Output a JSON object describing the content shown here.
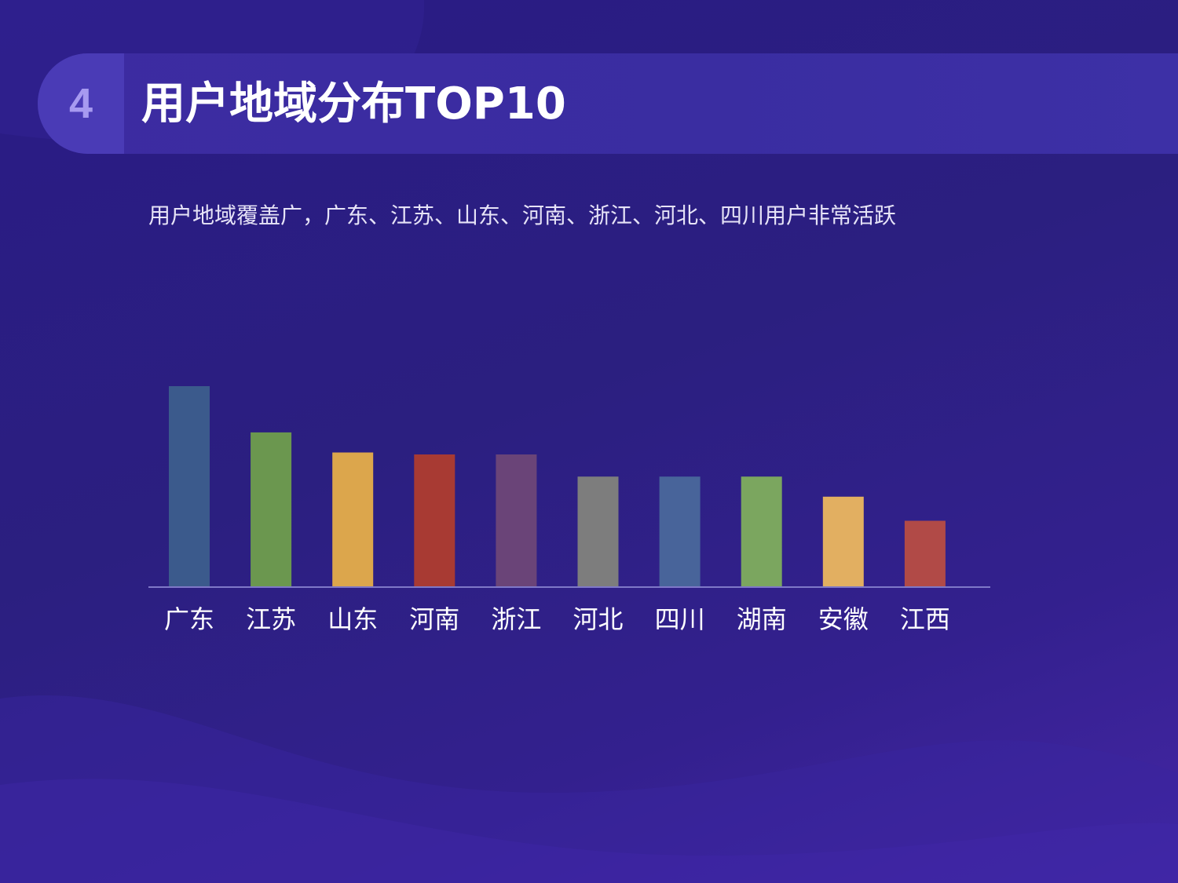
{
  "slide": {
    "number": "4",
    "title": "用户地域分布TOP10",
    "subtitle": "用户地域覆盖广，广东、江苏、山东、河南、浙江、河北、四川用户非常活跃"
  },
  "chart_data": {
    "type": "bar",
    "categories": [
      "广东",
      "江苏",
      "山东",
      "河南",
      "浙江",
      "河北",
      "四川",
      "湖南",
      "安徽",
      "江西"
    ],
    "values": [
      100,
      77,
      67,
      66,
      66,
      55,
      55,
      55,
      45,
      33
    ],
    "colors": [
      "#3b5a8c",
      "#6b974f",
      "#dca64c",
      "#a83a33",
      "#6a4478",
      "#7d7d7d",
      "#48649a",
      "#7ba65f",
      "#e2af61",
      "#b14a47"
    ],
    "ylim": [
      0,
      100
    ],
    "grid": false,
    "legend": "none",
    "axis_color": "#7f78c8"
  }
}
